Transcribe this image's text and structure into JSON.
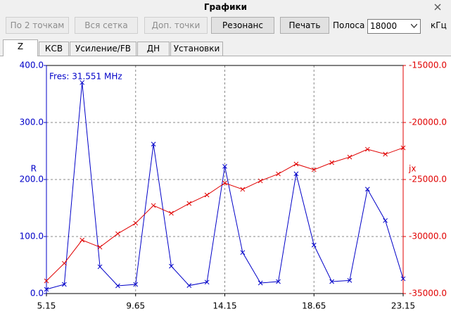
{
  "window": {
    "title": "Графики"
  },
  "toolbar": {
    "buttons": [
      "По 2 точкам",
      "Вся сетка",
      "Доп. точки",
      "Резонанс",
      "Печать"
    ],
    "band_label": "Полоса",
    "band_value": "18000",
    "band_unit": "кГц"
  },
  "tabs": [
    "Z",
    "КСВ",
    "Усиление/FB",
    "ДН",
    "Установки"
  ],
  "chart_data": {
    "type": "line",
    "annotation": "Fres: 31.551 MHz",
    "x": [
      5.15,
      6.05,
      6.95,
      7.85,
      8.75,
      9.65,
      10.55,
      11.45,
      12.35,
      13.25,
      14.15,
      15.05,
      15.95,
      16.85,
      17.75,
      18.65,
      19.55,
      20.45,
      21.35,
      22.25,
      23.15
    ],
    "xlim": [
      5.15,
      23.15
    ],
    "xticks": [
      5.15,
      9.65,
      14.15,
      18.65,
      23.15
    ],
    "ylim": [
      0,
      400
    ],
    "yticks": [
      {
        "value": 0,
        "label": "0.0"
      },
      {
        "value": 100,
        "label": "100.0"
      },
      {
        "value": 200,
        "label": "200.0"
      },
      {
        "value": 300,
        "label": "300.0"
      },
      {
        "value": 400,
        "label": "400.0"
      }
    ],
    "y2lim": [
      -35000,
      -15000
    ],
    "y2ticks": [
      {
        "value": -35000,
        "label": "-35000.0"
      },
      {
        "value": -30000,
        "label": "-30000.0"
      },
      {
        "value": -25000,
        "label": "-25000.0"
      },
      {
        "value": -20000,
        "label": "-20000.0"
      },
      {
        "value": -15000,
        "label": "-15000.0"
      }
    ],
    "grid": true,
    "series": [
      {
        "name": "R",
        "color": "#0000c8",
        "values": [
          7.4,
          16,
          370,
          47,
          13.6,
          16,
          262,
          48,
          14,
          20,
          223,
          72,
          18.5,
          21,
          210,
          85,
          21,
          23,
          183,
          128,
          26
        ]
      },
      {
        "name": "jx",
        "color": "#e00000",
        "axis": "y2",
        "values": [
          -33890,
          -32350,
          -30310,
          -30930,
          -29750,
          -28830,
          -27280,
          -27960,
          -27100,
          -26360,
          -25310,
          -25860,
          -25120,
          -24510,
          -23640,
          -24140,
          -23520,
          -23030,
          -22350,
          -22780,
          -22220
        ]
      }
    ]
  }
}
